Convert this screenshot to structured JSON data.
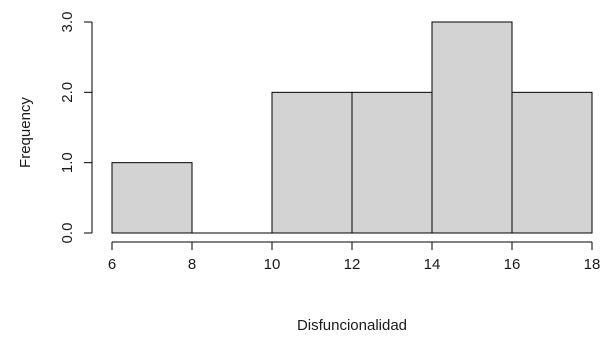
{
  "chart_data": {
    "type": "bar",
    "title": "",
    "xlabel": "Disfuncionalidad",
    "ylabel": "Frequency",
    "bins": [
      {
        "start": 6,
        "end": 8,
        "count": 1
      },
      {
        "start": 8,
        "end": 10,
        "count": 0
      },
      {
        "start": 10,
        "end": 12,
        "count": 2
      },
      {
        "start": 12,
        "end": 14,
        "count": 2
      },
      {
        "start": 14,
        "end": 16,
        "count": 3
      },
      {
        "start": 16,
        "end": 18,
        "count": 2
      }
    ],
    "xlim": [
      6,
      18
    ],
    "ylim": [
      0,
      3
    ],
    "x_ticks": [
      {
        "value": 6,
        "label": "6"
      },
      {
        "value": 8,
        "label": "8"
      },
      {
        "value": 10,
        "label": "10"
      },
      {
        "value": 12,
        "label": "12"
      },
      {
        "value": 14,
        "label": "14"
      },
      {
        "value": 16,
        "label": "16"
      },
      {
        "value": 18,
        "label": "18"
      }
    ],
    "y_ticks": [
      {
        "value": 0,
        "label": "0.0"
      },
      {
        "value": 1,
        "label": "1.0"
      },
      {
        "value": 2,
        "label": "2.0"
      },
      {
        "value": 3,
        "label": "3.0"
      }
    ],
    "bar_color": "#d3d3d3",
    "grid": false,
    "legend": "none"
  }
}
